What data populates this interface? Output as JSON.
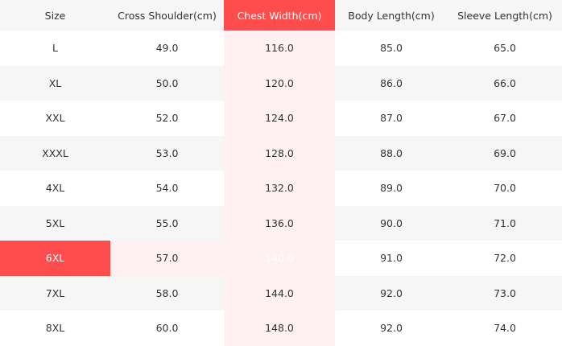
{
  "table": {
    "header": [
      "Size",
      "Cross Shoulder(cm)",
      "Chest Width(cm)",
      "Body Length(cm)",
      "Sleeve Length(cm)"
    ],
    "rows": [
      [
        "L",
        "49.0",
        "116.0",
        "85.0",
        "65.0"
      ],
      [
        "XL",
        "50.0",
        "120.0",
        "86.0",
        "66.0"
      ],
      [
        "XXL",
        "52.0",
        "124.0",
        "87.0",
        "67.0"
      ],
      [
        "XXXL",
        "53.0",
        "128.0",
        "88.0",
        "69.0"
      ],
      [
        "4XL",
        "54.0",
        "132.0",
        "89.0",
        "70.0"
      ],
      [
        "5XL",
        "55.0",
        "136.0",
        "90.0",
        "71.0"
      ],
      [
        "6XL",
        "57.0",
        "140.0",
        "91.0",
        "72.0"
      ],
      [
        "7XL",
        "58.0",
        "144.0",
        "92.0",
        "73.0"
      ],
      [
        "8XL",
        "60.0",
        "148.0",
        "92.0",
        "74.0"
      ]
    ]
  }
}
